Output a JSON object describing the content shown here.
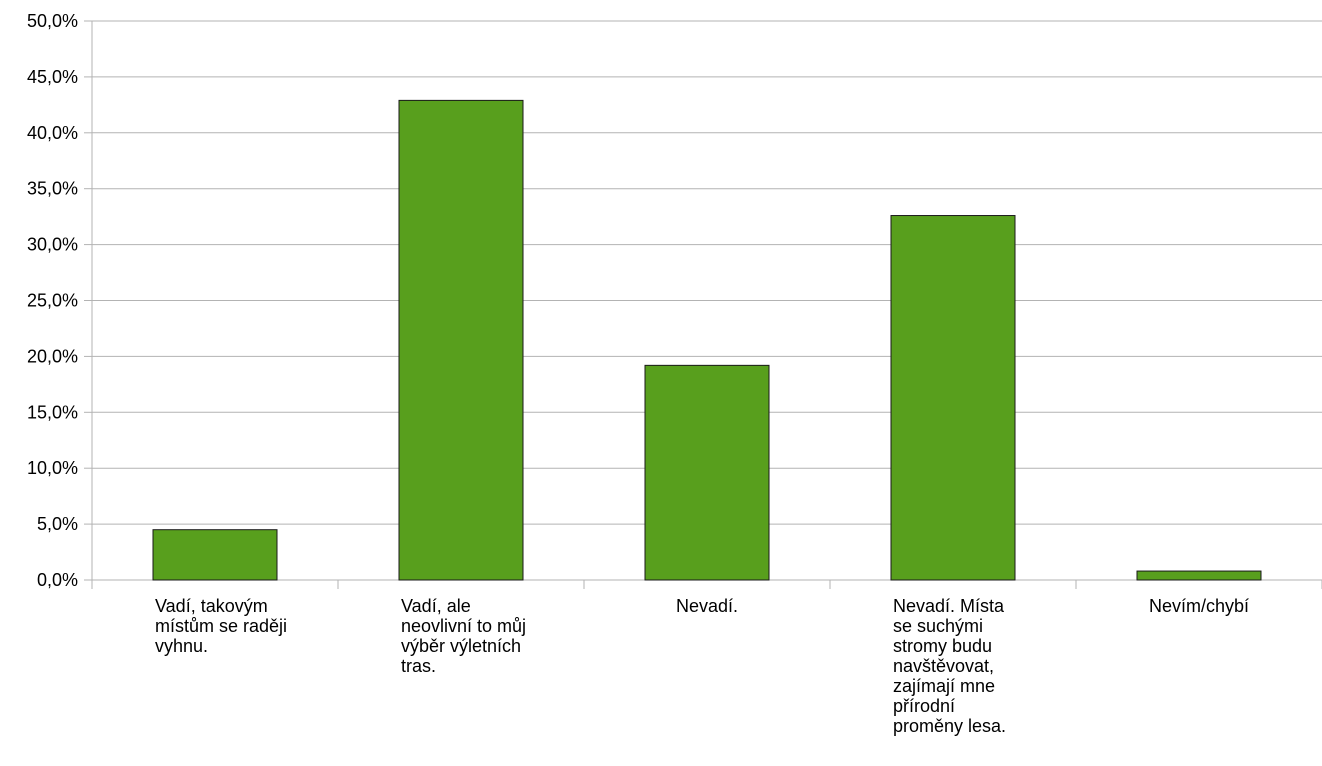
{
  "chart_data": {
    "type": "bar",
    "title": "",
    "xlabel": "",
    "ylabel": "",
    "categories": [
      [
        "Vadí, takovým",
        "místům se raději",
        "vyhnu."
      ],
      [
        "Vadí, ale",
        "neovlivní to můj",
        "výběr výletních",
        "tras."
      ],
      [
        "Nevadí."
      ],
      [
        "Nevadí. Místa",
        "se suchými",
        "stromy budu",
        "navštěvovat,",
        "zajímají mne",
        "přírodní",
        "proměny lesa."
      ],
      [
        "Nevím/chybí"
      ]
    ],
    "values": [
      4.5,
      42.9,
      19.2,
      32.6,
      0.8
    ],
    "ylim": [
      0,
      50
    ],
    "yticks": [
      "0,0%",
      "5,0%",
      "10,0%",
      "15,0%",
      "20,0%",
      "25,0%",
      "30,0%",
      "35,0%",
      "40,0%",
      "45,0%",
      "50,0%"
    ],
    "grid": true,
    "legend": "none",
    "bar_color": "#589f1d",
    "bar_border": "#1a1a1a",
    "grid_color": "#b3b3b3"
  }
}
